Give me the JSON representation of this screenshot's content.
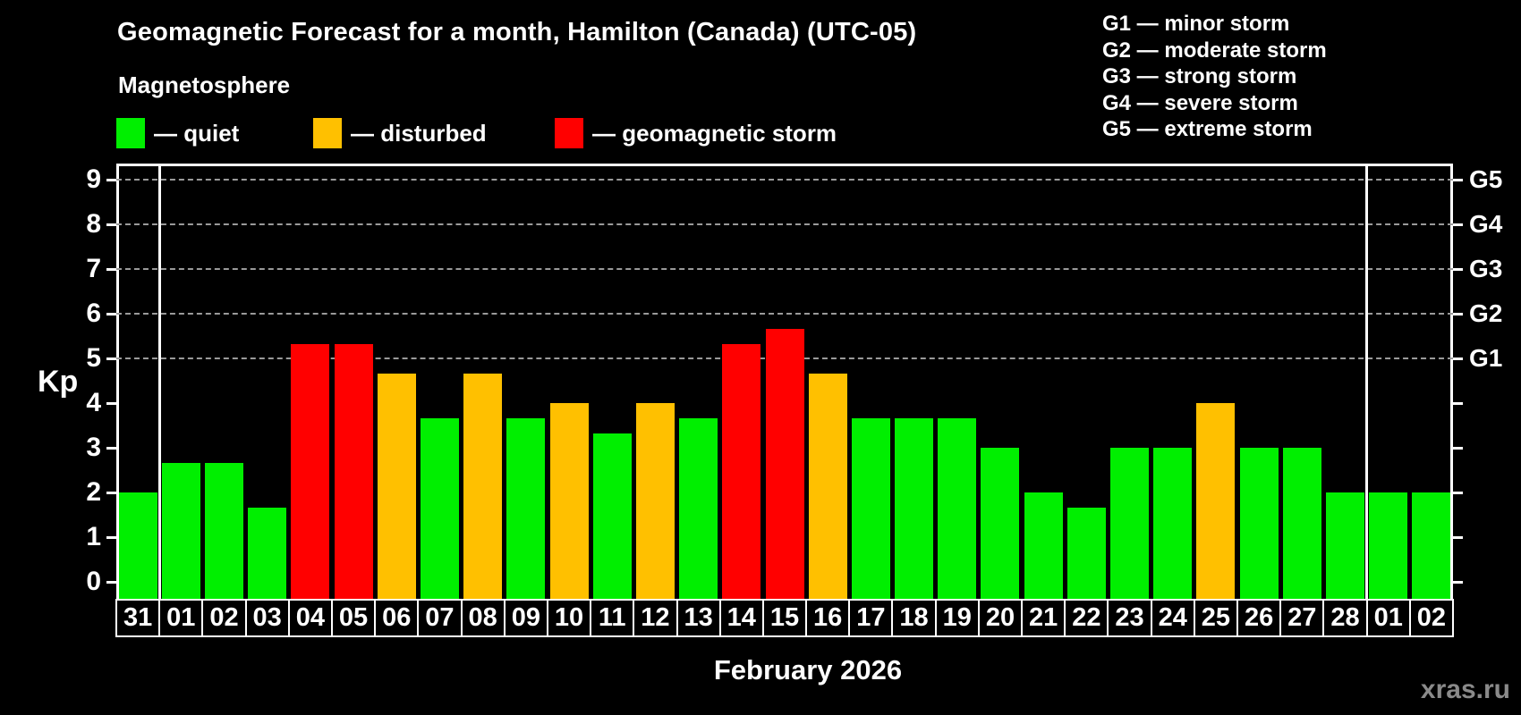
{
  "header": {
    "title": "Geomagnetic Forecast for a month, Hamilton (Canada) (UTC-05)",
    "subtitle": "Magnetosphere"
  },
  "legend": {
    "items": [
      {
        "label": "— quiet",
        "status": "quiet"
      },
      {
        "label": "— disturbed",
        "status": "disturbed"
      },
      {
        "label": "— geomagnetic storm",
        "status": "storm"
      }
    ]
  },
  "g_legend": {
    "lines": [
      "G1 — minor storm",
      "G2 — moderate storm",
      "G3 — strong storm",
      "G4 — severe storm",
      "G5 — extreme storm"
    ]
  },
  "axes": {
    "y_label": "Kp",
    "y_ticks": [
      0,
      1,
      2,
      3,
      4,
      5,
      6,
      7,
      8,
      9
    ],
    "right_labels": {
      "5": "G1",
      "6": "G2",
      "7": "G3",
      "8": "G4",
      "9": "G5"
    }
  },
  "footer": {
    "month_label": "February 2026",
    "watermark": "xras.ru"
  },
  "chart_data": {
    "type": "bar",
    "title": "Geomagnetic Forecast for a month, Hamilton (Canada) (UTC-05)",
    "xlabel": "February 2026",
    "ylabel": "Kp",
    "ylim": [
      0,
      9.4
    ],
    "grid": "dashed horizontal at Kp 5-9 only",
    "legend_position": "top-left",
    "categories": [
      "31",
      "01",
      "02",
      "03",
      "04",
      "05",
      "06",
      "07",
      "08",
      "09",
      "10",
      "11",
      "12",
      "13",
      "14",
      "15",
      "16",
      "17",
      "18",
      "19",
      "20",
      "21",
      "22",
      "23",
      "24",
      "25",
      "26",
      "27",
      "28",
      "01",
      "02"
    ],
    "values": [
      2.0,
      2.67,
      2.67,
      1.67,
      5.33,
      5.33,
      4.67,
      3.67,
      4.67,
      3.67,
      4.0,
      3.33,
      4.0,
      3.67,
      5.33,
      5.67,
      4.67,
      3.67,
      3.67,
      3.67,
      3.0,
      2.0,
      1.67,
      3.0,
      3.0,
      4.0,
      3.0,
      3.0,
      2.0,
      2.0,
      2.0
    ],
    "statuses": [
      "quiet",
      "quiet",
      "quiet",
      "quiet",
      "storm",
      "storm",
      "disturbed",
      "quiet",
      "disturbed",
      "quiet",
      "disturbed",
      "quiet",
      "disturbed",
      "quiet",
      "storm",
      "storm",
      "disturbed",
      "quiet",
      "quiet",
      "quiet",
      "quiet",
      "quiet",
      "quiet",
      "quiet",
      "quiet",
      "disturbed",
      "quiet",
      "quiet",
      "quiet",
      "quiet",
      "quiet"
    ],
    "status_colors": {
      "quiet": "#00ef00",
      "disturbed": "#ffc000",
      "storm": "#ff0000"
    },
    "gridlines_at": [
      5,
      6,
      7,
      8,
      9
    ],
    "month_separator_boundaries": [
      1,
      29
    ]
  }
}
